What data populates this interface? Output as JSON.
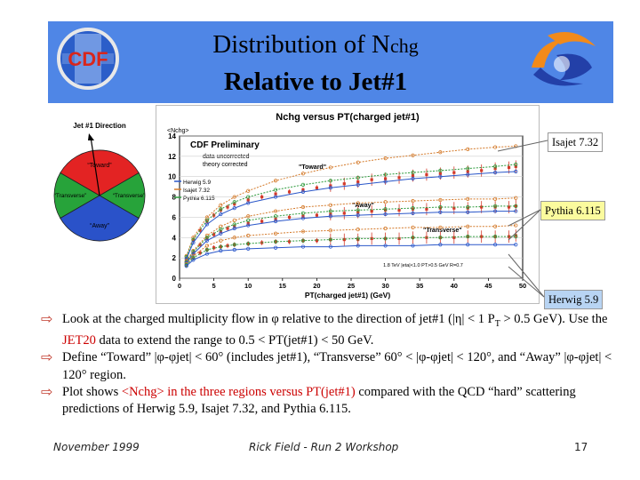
{
  "title": {
    "line1_prefix": "Distribution of N",
    "line1_sub": "chg",
    "line2": "Relative to Jet#1"
  },
  "logos": {
    "left": "CDF",
    "left_icon": "cdf-logo-icon",
    "right_icon": "fermilab-logo-icon"
  },
  "diagram": {
    "title": "Jet #1 Direction",
    "toward": "“Toward”",
    "transverse_left": "“Transverse”",
    "transverse_right": "“Transverse”",
    "away": "“Away”",
    "colors": {
      "toward": "#e32323",
      "transverse": "#27a33a",
      "away": "#2a52c9"
    }
  },
  "chart_data": {
    "type": "scatter",
    "title": "Nchg versus PT(charged jet#1)",
    "ylabel": "<Nchg>",
    "xlabel": "PT(charged jet#1) (GeV)",
    "xlim": [
      0,
      50
    ],
    "ylim": [
      0,
      14
    ],
    "xticks": [
      0,
      5,
      10,
      15,
      20,
      25,
      30,
      35,
      40,
      45,
      50
    ],
    "yticks": [
      0,
      2,
      4,
      6,
      8,
      10,
      12,
      14
    ],
    "legend": {
      "title": "CDF Preliminary",
      "line1": "data uncorrected",
      "line2": "theory corrected",
      "items": [
        "Herwig 5.9",
        "Isajet 7.32",
        "Pythia 6.115"
      ]
    },
    "region_labels": [
      "\"Toward\"",
      "\"Away\"",
      "\"Transverse\""
    ],
    "footnote": "1.8 TeV |eta|<1.0 PT>0.5 GeV R=0.7",
    "colors": {
      "data": "#d43a2a",
      "pythia": "#2e9b3d",
      "isajet": "#d47a2a",
      "herwig": "#2a57c9"
    },
    "series": [
      {
        "region": "toward",
        "data": true,
        "x": [
          1,
          2,
          3,
          4,
          5,
          6,
          7,
          8,
          10,
          12,
          14,
          16,
          18,
          20,
          22,
          24,
          26,
          28,
          30,
          32,
          34,
          36,
          38,
          40,
          42,
          44,
          46,
          48,
          49
        ],
        "y": [
          2.0,
          3.7,
          4.7,
          5.6,
          6.2,
          6.7,
          7.0,
          7.3,
          7.7,
          8.0,
          8.3,
          8.5,
          8.7,
          8.9,
          9.1,
          9.3,
          9.5,
          9.7,
          9.8,
          9.9,
          10.1,
          10.2,
          10.3,
          10.4,
          10.5,
          10.6,
          10.8,
          10.9,
          11.0
        ]
      },
      {
        "region": "away",
        "data": true,
        "x": [
          1,
          2,
          3,
          4,
          5,
          6,
          7,
          8,
          10,
          12,
          14,
          16,
          18,
          20,
          22,
          24,
          26,
          28,
          30,
          32,
          34,
          36,
          38,
          40,
          42,
          44,
          46,
          48,
          49
        ],
        "y": [
          1.6,
          2.5,
          3.3,
          3.9,
          4.3,
          4.6,
          4.9,
          5.1,
          5.4,
          5.6,
          5.8,
          6.0,
          6.1,
          6.2,
          6.3,
          6.4,
          6.5,
          6.6,
          6.7,
          6.7,
          6.8,
          6.8,
          6.9,
          6.9,
          6.9,
          7.0,
          7.0,
          7.0,
          7.1
        ]
      },
      {
        "region": "transverse",
        "data": true,
        "x": [
          1,
          2,
          3,
          4,
          5,
          6,
          7,
          8,
          10,
          12,
          14,
          16,
          18,
          20,
          22,
          24,
          26,
          28,
          30,
          32,
          34,
          36,
          38,
          40,
          42,
          44,
          46,
          48,
          49
        ],
        "y": [
          1.3,
          2.0,
          2.5,
          2.8,
          3.0,
          3.1,
          3.2,
          3.3,
          3.4,
          3.5,
          3.6,
          3.6,
          3.7,
          3.7,
          3.8,
          3.8,
          3.8,
          3.9,
          3.9,
          3.9,
          4.0,
          4.0,
          4.0,
          4.0,
          4.1,
          4.1,
          4.1,
          4.1,
          4.2
        ]
      },
      {
        "region": "toward",
        "model": "isajet",
        "x": [
          1,
          2,
          4,
          6,
          8,
          10,
          14,
          18,
          22,
          26,
          30,
          34,
          38,
          42,
          46,
          49
        ],
        "y": [
          2.2,
          4.0,
          6.0,
          7.2,
          8.0,
          8.6,
          9.6,
          10.3,
          10.9,
          11.4,
          11.8,
          12.1,
          12.4,
          12.7,
          12.9,
          13.0
        ]
      },
      {
        "region": "toward",
        "model": "pythia",
        "x": [
          1,
          2,
          4,
          6,
          8,
          10,
          14,
          18,
          22,
          26,
          30,
          34,
          38,
          42,
          46,
          49
        ],
        "y": [
          2.1,
          3.8,
          5.7,
          6.8,
          7.5,
          8.0,
          8.7,
          9.2,
          9.6,
          9.9,
          10.2,
          10.4,
          10.6,
          10.8,
          11.0,
          11.2
        ]
      },
      {
        "region": "toward",
        "model": "herwig",
        "x": [
          1,
          2,
          4,
          6,
          8,
          10,
          14,
          18,
          22,
          26,
          30,
          34,
          38,
          42,
          46,
          49
        ],
        "y": [
          1.9,
          3.5,
          5.3,
          6.3,
          6.9,
          7.4,
          8.0,
          8.5,
          8.9,
          9.2,
          9.5,
          9.8,
          10.0,
          10.2,
          10.4,
          10.5
        ]
      },
      {
        "region": "away",
        "model": "isajet",
        "x": [
          1,
          2,
          4,
          6,
          8,
          10,
          14,
          18,
          22,
          26,
          30,
          34,
          38,
          42,
          46,
          49
        ],
        "y": [
          1.7,
          2.7,
          4.2,
          5.1,
          5.7,
          6.1,
          6.6,
          7.0,
          7.2,
          7.4,
          7.5,
          7.6,
          7.7,
          7.8,
          7.8,
          7.9
        ]
      },
      {
        "region": "away",
        "model": "pythia",
        "x": [
          1,
          2,
          4,
          6,
          8,
          10,
          14,
          18,
          22,
          26,
          30,
          34,
          38,
          42,
          46,
          49
        ],
        "y": [
          1.6,
          2.6,
          4.0,
          4.8,
          5.3,
          5.7,
          6.1,
          6.4,
          6.6,
          6.7,
          6.8,
          6.9,
          7.0,
          7.0,
          7.1,
          7.1
        ]
      },
      {
        "region": "away",
        "model": "herwig",
        "x": [
          1,
          2,
          4,
          6,
          8,
          10,
          14,
          18,
          22,
          26,
          30,
          34,
          38,
          42,
          46,
          49
        ],
        "y": [
          1.5,
          2.4,
          3.7,
          4.4,
          4.9,
          5.2,
          5.6,
          5.9,
          6.1,
          6.2,
          6.3,
          6.4,
          6.5,
          6.5,
          6.6,
          6.6
        ]
      },
      {
        "region": "transverse",
        "model": "isajet",
        "x": [
          1,
          2,
          4,
          6,
          8,
          10,
          14,
          18,
          22,
          26,
          30,
          34,
          38,
          42,
          46,
          49
        ],
        "y": [
          1.4,
          2.2,
          3.2,
          3.7,
          4.0,
          4.2,
          4.4,
          4.6,
          4.7,
          4.8,
          4.9,
          5.0,
          5.0,
          5.1,
          5.1,
          5.2
        ]
      },
      {
        "region": "transverse",
        "model": "pythia",
        "x": [
          1,
          2,
          4,
          6,
          8,
          10,
          14,
          18,
          22,
          26,
          30,
          34,
          38,
          42,
          46,
          49
        ],
        "y": [
          1.3,
          2.0,
          2.8,
          3.1,
          3.3,
          3.4,
          3.6,
          3.7,
          3.8,
          3.9,
          3.9,
          4.0,
          4.0,
          4.1,
          4.1,
          4.1
        ]
      },
      {
        "region": "transverse",
        "model": "herwig",
        "x": [
          1,
          2,
          4,
          6,
          8,
          10,
          14,
          18,
          22,
          26,
          30,
          34,
          38,
          42,
          46,
          49
        ],
        "y": [
          1.2,
          1.8,
          2.4,
          2.7,
          2.8,
          2.9,
          3.0,
          3.1,
          3.1,
          3.2,
          3.2,
          3.2,
          3.3,
          3.3,
          3.3,
          3.3
        ]
      }
    ]
  },
  "callouts": {
    "isajet": "Isajet 7.32",
    "pythia": "Pythia 6.115",
    "herwig": "Herwig 5.9"
  },
  "bullets": {
    "b1_a": "Look at the charged multiplicity flow in ",
    "b1_phi": "φ",
    "b1_b": " relative to the direction of jet#1 (|",
    "b1_eta": "η",
    "b1_c": "| < 1 P",
    "b1_sub": "T",
    "b1_d": " > 0.5 GeV). Use the ",
    "b1_jet20": "JET20",
    "b1_e": " data to extend the range to 0.5 < PT(jet#1) < 50 GeV.",
    "b2": "Define “Toward” |φ-φjet| < 60° (includes jet#1), “Transverse” 60° < |φ-φjet| < 120°, and “Away” |φ-φjet| < 120° region.",
    "b3_a": "Plot shows ",
    "b3_red": "<Nchg> in the three regions versus PT(jet#1)",
    "b3_b": " compared with the QCD “hard” scattering predictions of Herwig 5.9, Isajet 7.32, and Pythia 6.115."
  },
  "footer": {
    "date": "November 1999",
    "event": "Rick Field - Run 2 Workshop",
    "page": "17"
  }
}
